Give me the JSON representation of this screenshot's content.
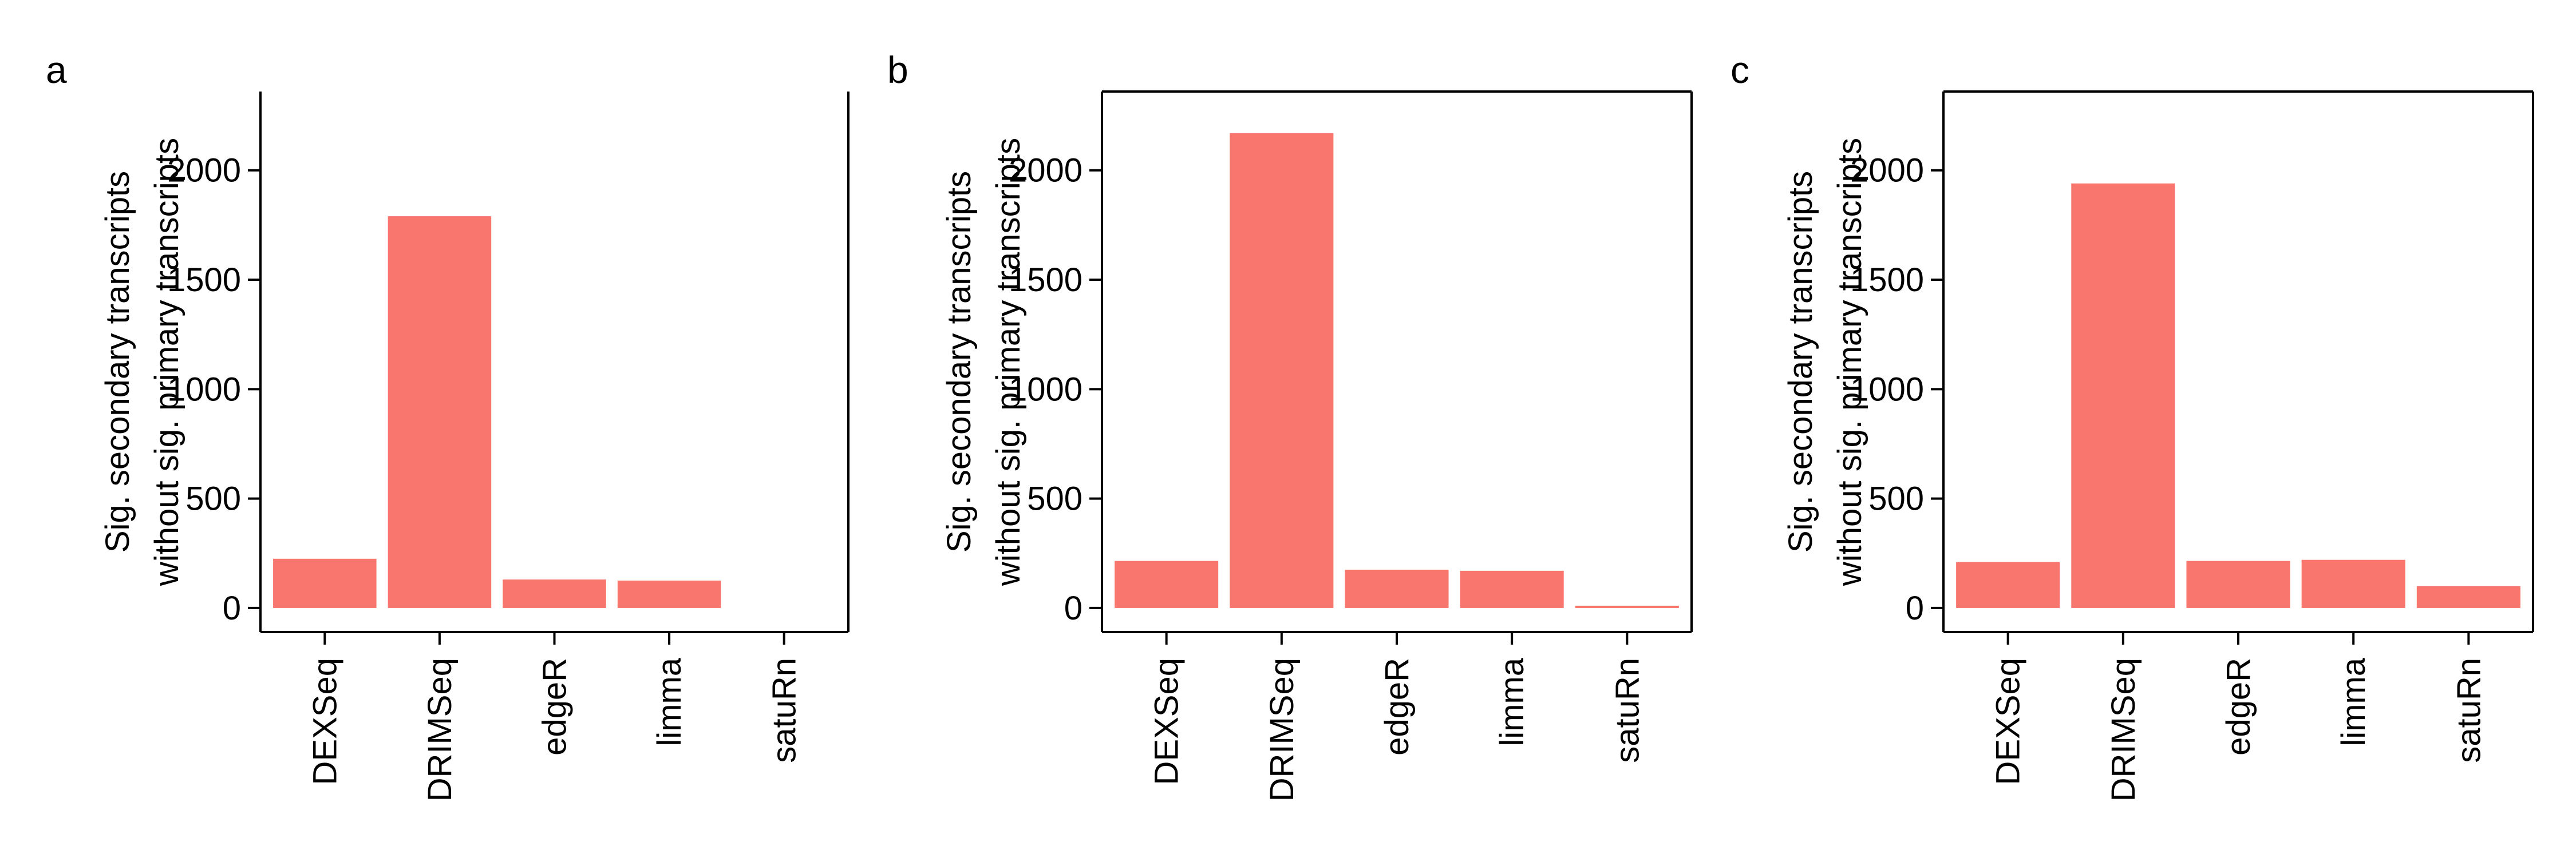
{
  "chart_data": [
    {
      "type": "bar",
      "panel": "a",
      "categories": [
        "DEXSeq",
        "DRIMSeq",
        "edgeR",
        "limma",
        "satuRn"
      ],
      "values": [
        225,
        1790,
        130,
        125,
        0
      ],
      "ylabel_line1": "Sig. secondary transcripts",
      "ylabel_line2": "without sig. primary transcripts",
      "yticks": [
        "0",
        "500",
        "1000",
        "1500",
        "2000"
      ],
      "ylim": [
        -110,
        2360
      ],
      "bar_color": "#F8766D",
      "grid": false
    },
    {
      "type": "bar",
      "panel": "b",
      "categories": [
        "DEXSeq",
        "DRIMSeq",
        "edgeR",
        "limma",
        "satuRn"
      ],
      "values": [
        215,
        2170,
        175,
        170,
        10
      ],
      "ylabel_line1": "Sig. secondary transcripts",
      "ylabel_line2": "without sig. primary transcripts",
      "yticks": [
        "0",
        "500",
        "1000",
        "1500",
        "2000"
      ],
      "ylim": [
        -110,
        2360
      ],
      "bar_color": "#F8766D",
      "grid": false
    },
    {
      "type": "bar",
      "panel": "c",
      "categories": [
        "DEXSeq",
        "DRIMSeq",
        "edgeR",
        "limma",
        "satuRn"
      ],
      "values": [
        210,
        1940,
        215,
        220,
        100
      ],
      "ylabel_line1": "Sig. secondary transcripts",
      "ylabel_line2": "without sig. primary transcripts",
      "yticks": [
        "0",
        "500",
        "1000",
        "1500",
        "2000"
      ],
      "ylim": [
        -110,
        2360
      ],
      "bar_color": "#F8766D",
      "grid": false
    }
  ]
}
